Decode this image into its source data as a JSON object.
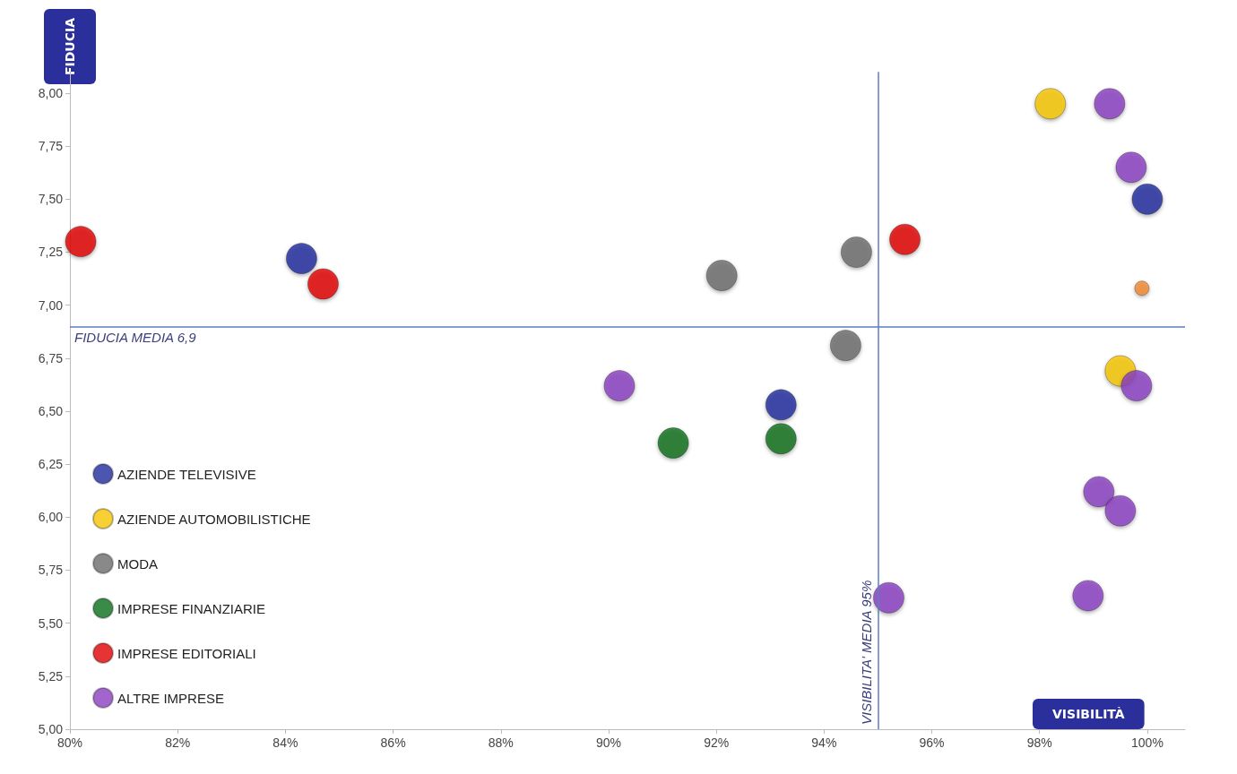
{
  "chart_data": {
    "type": "scatter",
    "xlabel": "VISIBILITÀ",
    "ylabel": "FIDUCIA",
    "xlim": [
      80,
      100.7
    ],
    "ylim": [
      5,
      8.1
    ],
    "xticks": [
      {
        "value": 80,
        "label": "80%"
      },
      {
        "value": 82,
        "label": "82%"
      },
      {
        "value": 84,
        "label": "84%"
      },
      {
        "value": 86,
        "label": "86%"
      },
      {
        "value": 88,
        "label": "88%"
      },
      {
        "value": 90,
        "label": "90%"
      },
      {
        "value": 92,
        "label": "92%"
      },
      {
        "value": 94,
        "label": "94%"
      },
      {
        "value": 96,
        "label": "96%"
      },
      {
        "value": 98,
        "label": "98%"
      },
      {
        "value": 100,
        "label": "100%"
      }
    ],
    "yticks": [
      {
        "value": 5,
        "label": "5,00"
      },
      {
        "value": 5.25,
        "label": "5,25"
      },
      {
        "value": 5.5,
        "label": "5,50"
      },
      {
        "value": 5.75,
        "label": "5,75"
      },
      {
        "value": 6,
        "label": "6,00"
      },
      {
        "value": 6.25,
        "label": "6,25"
      },
      {
        "value": 6.5,
        "label": "6,50"
      },
      {
        "value": 6.75,
        "label": "6,75"
      },
      {
        "value": 7,
        "label": "7,00"
      },
      {
        "value": 7.25,
        "label": "7,25"
      },
      {
        "value": 7.5,
        "label": "7,50"
      },
      {
        "value": 7.75,
        "label": "7,75"
      },
      {
        "value": 8,
        "label": "8,00"
      }
    ],
    "grid": false,
    "legend": "bottom left",
    "marker": "circle",
    "ref_lines": [
      {
        "axis": "y",
        "value": 6.9,
        "label": "FIDUCIA MEDIA 6,9",
        "color": "#5b7fbf"
      },
      {
        "axis": "x",
        "value": 95,
        "label": "VISIBILITA' MEDIA 95%",
        "color": "#5b7fbf"
      }
    ],
    "series": [
      {
        "name": "AZIENDE TELEVISIVE",
        "color": "#1f2a9c",
        "x": [
          84.3,
          93.2,
          100.0
        ],
        "values": [
          7.22,
          6.53,
          7.5
        ]
      },
      {
        "name": "AZIENDE AUTOMOBILISTICHE",
        "color": "#f5c400",
        "x": [
          98.2,
          99.5
        ],
        "values": [
          7.95,
          6.69
        ]
      },
      {
        "name": "MODA",
        "color": "#6b6b6b",
        "x": [
          92.1,
          94.6,
          94.4
        ],
        "values": [
          7.14,
          7.25,
          6.81
        ]
      },
      {
        "name": "IMPRESE FINANZIARIE",
        "color": "#0a6e1a",
        "x": [
          91.2,
          93.2
        ],
        "values": [
          6.35,
          6.37
        ]
      },
      {
        "name": "IMPRESE EDITORIALI",
        "color": "#e00000",
        "x": [
          80.2,
          84.7,
          95.5
        ],
        "values": [
          7.3,
          7.1,
          7.31
        ]
      },
      {
        "name": "ALTRE IMPRESE",
        "color": "#8a3fbf",
        "x": [
          99.3,
          99.7,
          99.8,
          90.2,
          99.1,
          99.5,
          95.2,
          98.9
        ],
        "values": [
          7.95,
          7.65,
          6.62,
          6.62,
          6.12,
          6.03,
          5.62,
          5.63
        ]
      },
      {
        "color": "#f08a30",
        "x": [
          99.9
        ],
        "values": [
          7.08
        ]
      }
    ]
  }
}
